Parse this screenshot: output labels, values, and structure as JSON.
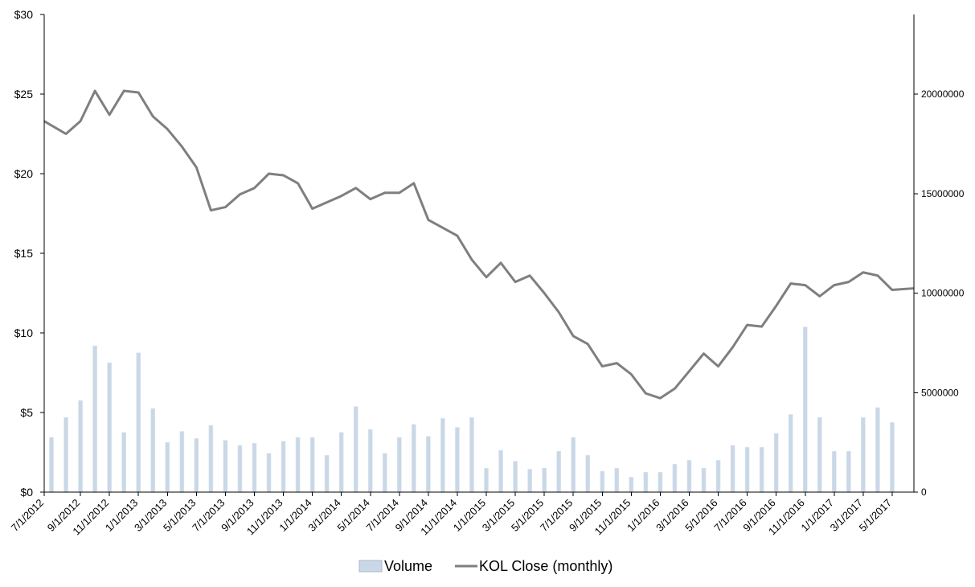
{
  "chart_data": {
    "type": "bar+line",
    "title": "",
    "xlabel": "",
    "ylabel": "",
    "x": [
      "7/1/2012",
      "8/1/2012",
      "9/1/2012",
      "10/1/2012",
      "11/1/2012",
      "12/1/2012",
      "1/1/2013",
      "2/1/2013",
      "3/1/2013",
      "4/1/2013",
      "5/1/2013",
      "6/1/2013",
      "7/1/2013",
      "8/1/2013",
      "9/1/2013",
      "10/1/2013",
      "11/1/2013",
      "12/1/2013",
      "1/1/2014",
      "2/1/2014",
      "3/1/2014",
      "4/1/2014",
      "5/1/2014",
      "6/1/2014",
      "7/1/2014",
      "8/1/2014",
      "9/1/2014",
      "10/1/2014",
      "11/1/2014",
      "12/1/2014",
      "1/1/2015",
      "2/1/2015",
      "3/1/2015",
      "4/1/2015",
      "5/1/2015",
      "6/1/2015",
      "7/1/2015",
      "8/1/2015",
      "9/1/2015",
      "10/1/2015",
      "11/1/2015",
      "12/1/2015",
      "1/1/2016",
      "2/1/2016",
      "3/1/2016",
      "4/1/2016",
      "5/1/2016",
      "6/1/2016",
      "7/1/2016",
      "8/1/2016",
      "9/1/2016",
      "10/1/2016",
      "11/1/2016",
      "12/1/2016",
      "1/1/2017",
      "2/1/2017",
      "3/1/2017",
      "4/1/2017",
      "5/1/2017",
      "6/1/2017"
    ],
    "x_tick_labels": [
      "7/1/2012",
      "9/1/2012",
      "11/1/2012",
      "1/1/2013",
      "3/1/2013",
      "5/1/2013",
      "7/1/2013",
      "9/1/2013",
      "11/1/2013",
      "1/1/2014",
      "3/1/2014",
      "5/1/2014",
      "7/1/2014",
      "9/1/2014",
      "11/1/2014",
      "1/1/2015",
      "3/1/2015",
      "5/1/2015",
      "7/1/2015",
      "9/1/2015",
      "11/1/2015",
      "1/1/2016",
      "3/1/2016",
      "5/1/2016",
      "7/1/2016",
      "9/1/2016",
      "11/1/2016",
      "1/1/2017",
      "3/1/2017",
      "5/1/2017"
    ],
    "y_left": {
      "ylim": [
        0,
        30
      ],
      "ticks": [
        "$0",
        "$5",
        "$10",
        "$15",
        "$20",
        "$25",
        "$30"
      ],
      "tick_values": [
        0,
        5,
        10,
        15,
        20,
        25,
        30
      ]
    },
    "y_right": {
      "ylim": [
        0,
        24000000
      ],
      "ticks": [
        "0",
        "5000000",
        "10000000",
        "15000000",
        "20000000"
      ],
      "tick_values": [
        0,
        5000000,
        10000000,
        15000000,
        20000000
      ]
    },
    "legend_position": "bottom",
    "grid": false,
    "series": [
      {
        "name": "Volume",
        "type": "bar",
        "axis": "right",
        "color": "#c9d7e6",
        "values": [
          2750000,
          3750000,
          4600000,
          7350000,
          6500000,
          3000000,
          7000000,
          4200000,
          2500000,
          3050000,
          2700000,
          3350000,
          2600000,
          2350000,
          2450000,
          1950000,
          2550000,
          2750000,
          2750000,
          1850000,
          3000000,
          4300000,
          3150000,
          1950000,
          2750000,
          3400000,
          2800000,
          3700000,
          3250000,
          3750000,
          1200000,
          2100000,
          1550000,
          1150000,
          1200000,
          2050000,
          2750000,
          1850000,
          1050000,
          1200000,
          750000,
          1000000,
          1000000,
          1400000,
          1600000,
          1200000,
          1600000,
          2350000,
          2250000,
          2250000,
          2950000,
          3900000,
          8300000,
          3750000,
          2050000,
          2050000,
          3750000,
          4250000,
          3500000,
          0
        ]
      },
      {
        "name": "KOL Close (monthly)",
        "type": "line",
        "axis": "left",
        "color": "#7f7f7f",
        "values": [
          23.3,
          22.5,
          23.3,
          25.2,
          23.7,
          25.2,
          25.1,
          23.6,
          22.8,
          21.7,
          20.4,
          17.7,
          17.9,
          18.7,
          19.1,
          20.0,
          19.9,
          19.4,
          17.8,
          18.2,
          18.6,
          19.1,
          18.4,
          18.8,
          18.8,
          19.4,
          17.1,
          16.6,
          16.1,
          14.6,
          13.5,
          14.4,
          13.2,
          13.6,
          12.5,
          11.3,
          9.8,
          9.3,
          7.9,
          8.1,
          7.4,
          6.2,
          5.9,
          6.5,
          7.6,
          8.7,
          7.9,
          9.1,
          10.5,
          10.4,
          11.7,
          13.1,
          13.0,
          12.3,
          13.0,
          13.2,
          13.8,
          13.6,
          12.7,
          12.8
        ]
      }
    ]
  }
}
